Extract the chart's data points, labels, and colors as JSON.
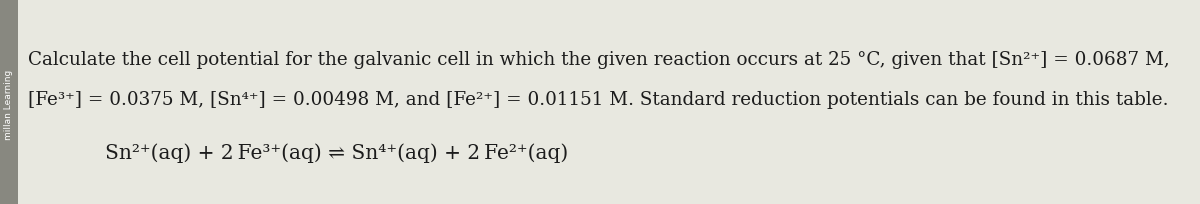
{
  "bg_color": "#e8e8e0",
  "sidebar_color": "#888880",
  "sidebar_text": "millan Learning",
  "line1": "Calculate the cell potential for the galvanic cell in which the given reaction occurs at 25 °C, given that [Sn²⁺] = 0.0687 M,",
  "line2": "[Fe³⁺] = 0.0375 M, [Sn⁴⁺] = 0.00498 M, and [Fe²⁺] = 0.01151 M. Standard reduction potentials can be found in this table.",
  "reaction_left": "Sn²⁺(aq) + 2 Fe³⁺(aq)",
  "reaction_arrow": " ⇌ ",
  "reaction_right": "Sn⁴⁺(aq) + 2 Fe²⁺(aq)",
  "text_color": "#1c1c1c",
  "font_size_body": 13.2,
  "font_size_reaction": 14.5,
  "font_size_sidebar": 6.5
}
